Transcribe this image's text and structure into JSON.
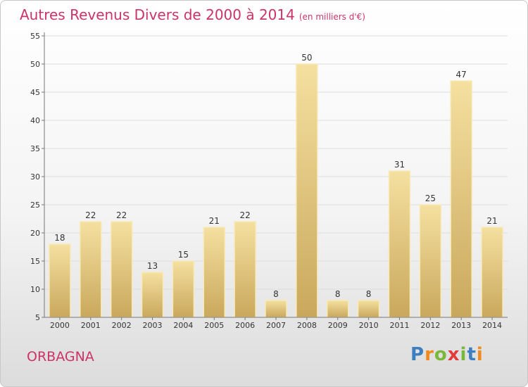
{
  "title": "Autres Revenus Divers de 2000 à 2014",
  "unit_note": "(en milliers d'€)",
  "commune": "ORBAGNA",
  "logo": {
    "text": "Proxiti",
    "letter_colors": [
      "#3c7fc0",
      "#f08a1c",
      "#7ab83c",
      "#e23c3c",
      "#7ab83c",
      "#3c7fc0",
      "#f08a1c"
    ]
  },
  "chart_data": {
    "type": "bar",
    "title": "Autres Revenus Divers de 2000 à 2014",
    "subtitle": "(en milliers d'€)",
    "categories": [
      "2000",
      "2001",
      "2002",
      "2003",
      "2004",
      "2005",
      "2006",
      "2007",
      "2008",
      "2009",
      "2010",
      "2011",
      "2012",
      "2013",
      "2014"
    ],
    "values": [
      18,
      22,
      22,
      13,
      15,
      21,
      22,
      8,
      50,
      8,
      8,
      31,
      25,
      47,
      21
    ],
    "ylim": [
      5,
      55
    ],
    "yticks": [
      5,
      10,
      15,
      20,
      25,
      30,
      35,
      40,
      45,
      50,
      55
    ],
    "grid": true,
    "colors": {
      "bar_top": "#f5e0a0",
      "bar_bottom": "#c9a85c",
      "bar_edge": "#f7e9b8",
      "grid": "#dddddd",
      "axis": "#777777"
    }
  }
}
